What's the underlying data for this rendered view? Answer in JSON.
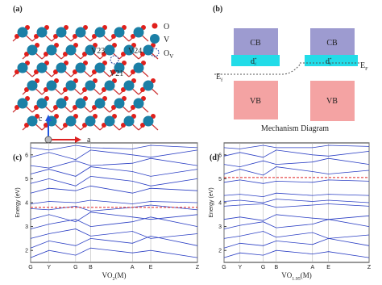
{
  "panel_a": {
    "label": "(a)",
    "legend": [
      "O",
      "V",
      "O"
    ],
    "legend_sub": "V",
    "sites": [
      "V23",
      "V24",
      "V21"
    ],
    "axes": [
      "c",
      "a"
    ]
  },
  "panel_b": {
    "label": "(b)",
    "left": {
      "cb": "CB",
      "vb": "VB",
      "d": "d",
      "d_sup": "*",
      "d_sub": "//",
      "ef": "E",
      "ef_sub": "f"
    },
    "right": {
      "cb": "CB",
      "vb": "VB",
      "d": "d",
      "d_sup": "*",
      "d_sub": "//",
      "ef": "E",
      "ef_sub": "F"
    },
    "caption": "Mechanism Diagram"
  },
  "panel_c": {
    "label": "(c)",
    "y_label": "Energy (eV)",
    "x_label": "VO",
    "x_label_sub": "2",
    "x_label_tail": "(M)",
    "ylim": [
      1.5,
      6.5
    ],
    "yticks": [
      2,
      3,
      4,
      5,
      6
    ],
    "xlim": [
      0,
      1
    ],
    "xticks": [
      {
        "value": 0,
        "label": "G"
      },
      {
        "value": 0.11,
        "label": "Y"
      },
      {
        "value": 0.27,
        "label": "G"
      },
      {
        "value": 0.36,
        "label": "B"
      },
      {
        "value": 0.61,
        "label": "A"
      },
      {
        "value": 0.72,
        "label": "E"
      },
      {
        "value": 1,
        "label": "Z"
      }
    ],
    "x": [
      0,
      0.11,
      0.27,
      0.36,
      0.61,
      0.72,
      1
    ],
    "fermi": 3.8,
    "bands": [
      [
        1.7,
        2.0,
        1.8,
        2.1,
        1.9,
        2.0,
        1.7
      ],
      [
        2.1,
        2.4,
        2.2,
        2.5,
        2.3,
        2.6,
        2.2
      ],
      [
        2.5,
        2.7,
        2.9,
        2.6,
        2.8,
        2.5,
        2.7
      ],
      [
        2.9,
        3.1,
        3.3,
        3.0,
        3.2,
        3.4,
        3.0
      ],
      [
        3.3,
        3.5,
        3.2,
        3.6,
        3.4,
        3.3,
        3.5
      ],
      [
        3.75,
        3.7,
        3.85,
        3.65,
        3.8,
        3.9,
        3.7
      ],
      [
        3.95,
        4.05,
        4.0,
        4.1,
        3.95,
        4.05,
        4.0
      ],
      [
        4.4,
        4.6,
        4.5,
        4.7,
        4.4,
        4.6,
        4.5
      ],
      [
        4.8,
        5.0,
        4.7,
        5.1,
        4.9,
        4.7,
        5.0
      ],
      [
        5.2,
        5.4,
        5.1,
        5.5,
        5.3,
        5.1,
        5.4
      ],
      [
        5.55,
        5.45,
        5.75,
        5.55,
        5.65,
        5.85,
        5.55
      ],
      [
        5.9,
        6.1,
        5.8,
        6.2,
        6.0,
        5.9,
        6.2
      ],
      [
        6.3,
        6.2,
        6.4,
        6.3,
        6.25,
        6.4,
        6.3
      ]
    ]
  },
  "panel_d": {
    "label": "(d)",
    "y_label": "Energy (eV)",
    "x_label": "VO",
    "x_label_sub": "1.95",
    "x_label_tail": "(M)",
    "ylim": [
      1.5,
      6.5
    ],
    "yticks": [
      2,
      3,
      4,
      5,
      6
    ],
    "xlim": [
      0,
      1
    ],
    "xticks": [
      {
        "value": 0,
        "label": "G"
      },
      {
        "value": 0.11,
        "label": "Y"
      },
      {
        "value": 0.27,
        "label": "G"
      },
      {
        "value": 0.36,
        "label": "B"
      },
      {
        "value": 0.61,
        "label": "A"
      },
      {
        "value": 0.72,
        "label": "E"
      },
      {
        "value": 1,
        "label": "Z"
      }
    ],
    "x": [
      0,
      0.11,
      0.27,
      0.36,
      0.61,
      0.72,
      1
    ],
    "fermi": 5.05,
    "bands": [
      [
        1.7,
        1.9,
        1.8,
        2.0,
        1.85,
        1.95,
        1.7
      ],
      [
        2.1,
        2.3,
        2.2,
        2.4,
        2.25,
        2.5,
        2.2
      ],
      [
        2.5,
        2.6,
        2.8,
        2.55,
        2.75,
        2.5,
        2.65
      ],
      [
        2.9,
        3.05,
        3.2,
        2.95,
        3.1,
        3.3,
        3.0
      ],
      [
        3.3,
        3.4,
        3.25,
        3.5,
        3.35,
        3.3,
        3.45
      ],
      [
        3.85,
        3.9,
        3.95,
        3.8,
        3.9,
        3.95,
        3.85
      ],
      [
        4.05,
        4.1,
        4.0,
        4.15,
        4.05,
        4.1,
        4.0
      ],
      [
        4.3,
        4.35,
        4.25,
        4.4,
        4.3,
        4.35,
        4.3
      ],
      [
        4.85,
        4.95,
        4.8,
        4.9,
        4.85,
        4.95,
        4.9
      ],
      [
        5.2,
        5.4,
        5.15,
        5.5,
        5.3,
        5.2,
        5.35
      ],
      [
        5.6,
        5.5,
        5.75,
        5.6,
        5.7,
        5.85,
        5.6
      ],
      [
        5.95,
        6.1,
        5.9,
        6.2,
        6.0,
        5.95,
        6.15
      ],
      [
        6.3,
        6.25,
        6.4,
        6.3,
        6.3,
        6.4,
        6.35
      ]
    ]
  }
}
